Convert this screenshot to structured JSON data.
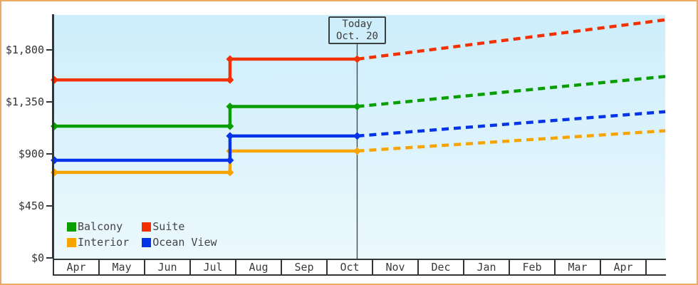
{
  "page": {
    "border_color": "#edaa63",
    "background": "#ffffff"
  },
  "chart_data": {
    "type": "line",
    "subtype": "step-history-with-dashed-forecast",
    "title": "",
    "currency": "USD",
    "grid": false,
    "legend_position": "bottom-left",
    "plot_background": [
      "#cdeefb",
      "#ecf9fd"
    ],
    "x_months": [
      "Apr",
      "May",
      "Jun",
      "Jul",
      "Aug",
      "Sep",
      "Oct",
      "Nov",
      "Dec",
      "Jan",
      "Feb",
      "Mar",
      "Apr"
    ],
    "y_ticks": {
      "labels": [
        "$1,800",
        "$1,350",
        "$900",
        "$450",
        "$0"
      ],
      "values": [
        1800,
        1350,
        900,
        450,
        0
      ]
    },
    "ylim": [
      0,
      2120
    ],
    "today_marker": {
      "title": "Today",
      "date": "Oct. 20",
      "month_frac": 6.64,
      "line_color": "#4a4a4a"
    },
    "price_step_month_frac": 3.85,
    "forecast_end_month_frac": 13.4,
    "series": [
      {
        "name": "Interior",
        "color": "#f8a400",
        "points": [
          [
            0,
            740
          ],
          [
            3.85,
            740
          ],
          [
            3.85,
            925
          ],
          [
            6.64,
            925
          ]
        ],
        "forecast": [
          [
            6.64,
            925
          ],
          [
            13.4,
            1100
          ]
        ]
      },
      {
        "name": "Ocean View",
        "color": "#0534e8",
        "points": [
          [
            0,
            845
          ],
          [
            3.85,
            845
          ],
          [
            3.85,
            1055
          ],
          [
            6.64,
            1055
          ]
        ],
        "forecast": [
          [
            6.64,
            1055
          ],
          [
            13.4,
            1265
          ]
        ]
      },
      {
        "name": "Balcony",
        "color": "#089e00",
        "points": [
          [
            0,
            1140
          ],
          [
            3.85,
            1140
          ],
          [
            3.85,
            1310
          ],
          [
            6.64,
            1310
          ]
        ],
        "forecast": [
          [
            6.64,
            1310
          ],
          [
            13.4,
            1570
          ]
        ]
      },
      {
        "name": "Suite",
        "color": "#f23000",
        "points": [
          [
            0,
            1540
          ],
          [
            3.85,
            1540
          ],
          [
            3.85,
            1720
          ],
          [
            6.64,
            1720
          ]
        ],
        "forecast": [
          [
            6.64,
            1720
          ],
          [
            13.4,
            2060
          ]
        ]
      }
    ],
    "legend": [
      {
        "label": "Balcony",
        "color": "#089e00"
      },
      {
        "label": "Suite",
        "color": "#f23000"
      },
      {
        "label": "Interior",
        "color": "#f8a400"
      },
      {
        "label": "Ocean View",
        "color": "#0534e8"
      }
    ]
  }
}
